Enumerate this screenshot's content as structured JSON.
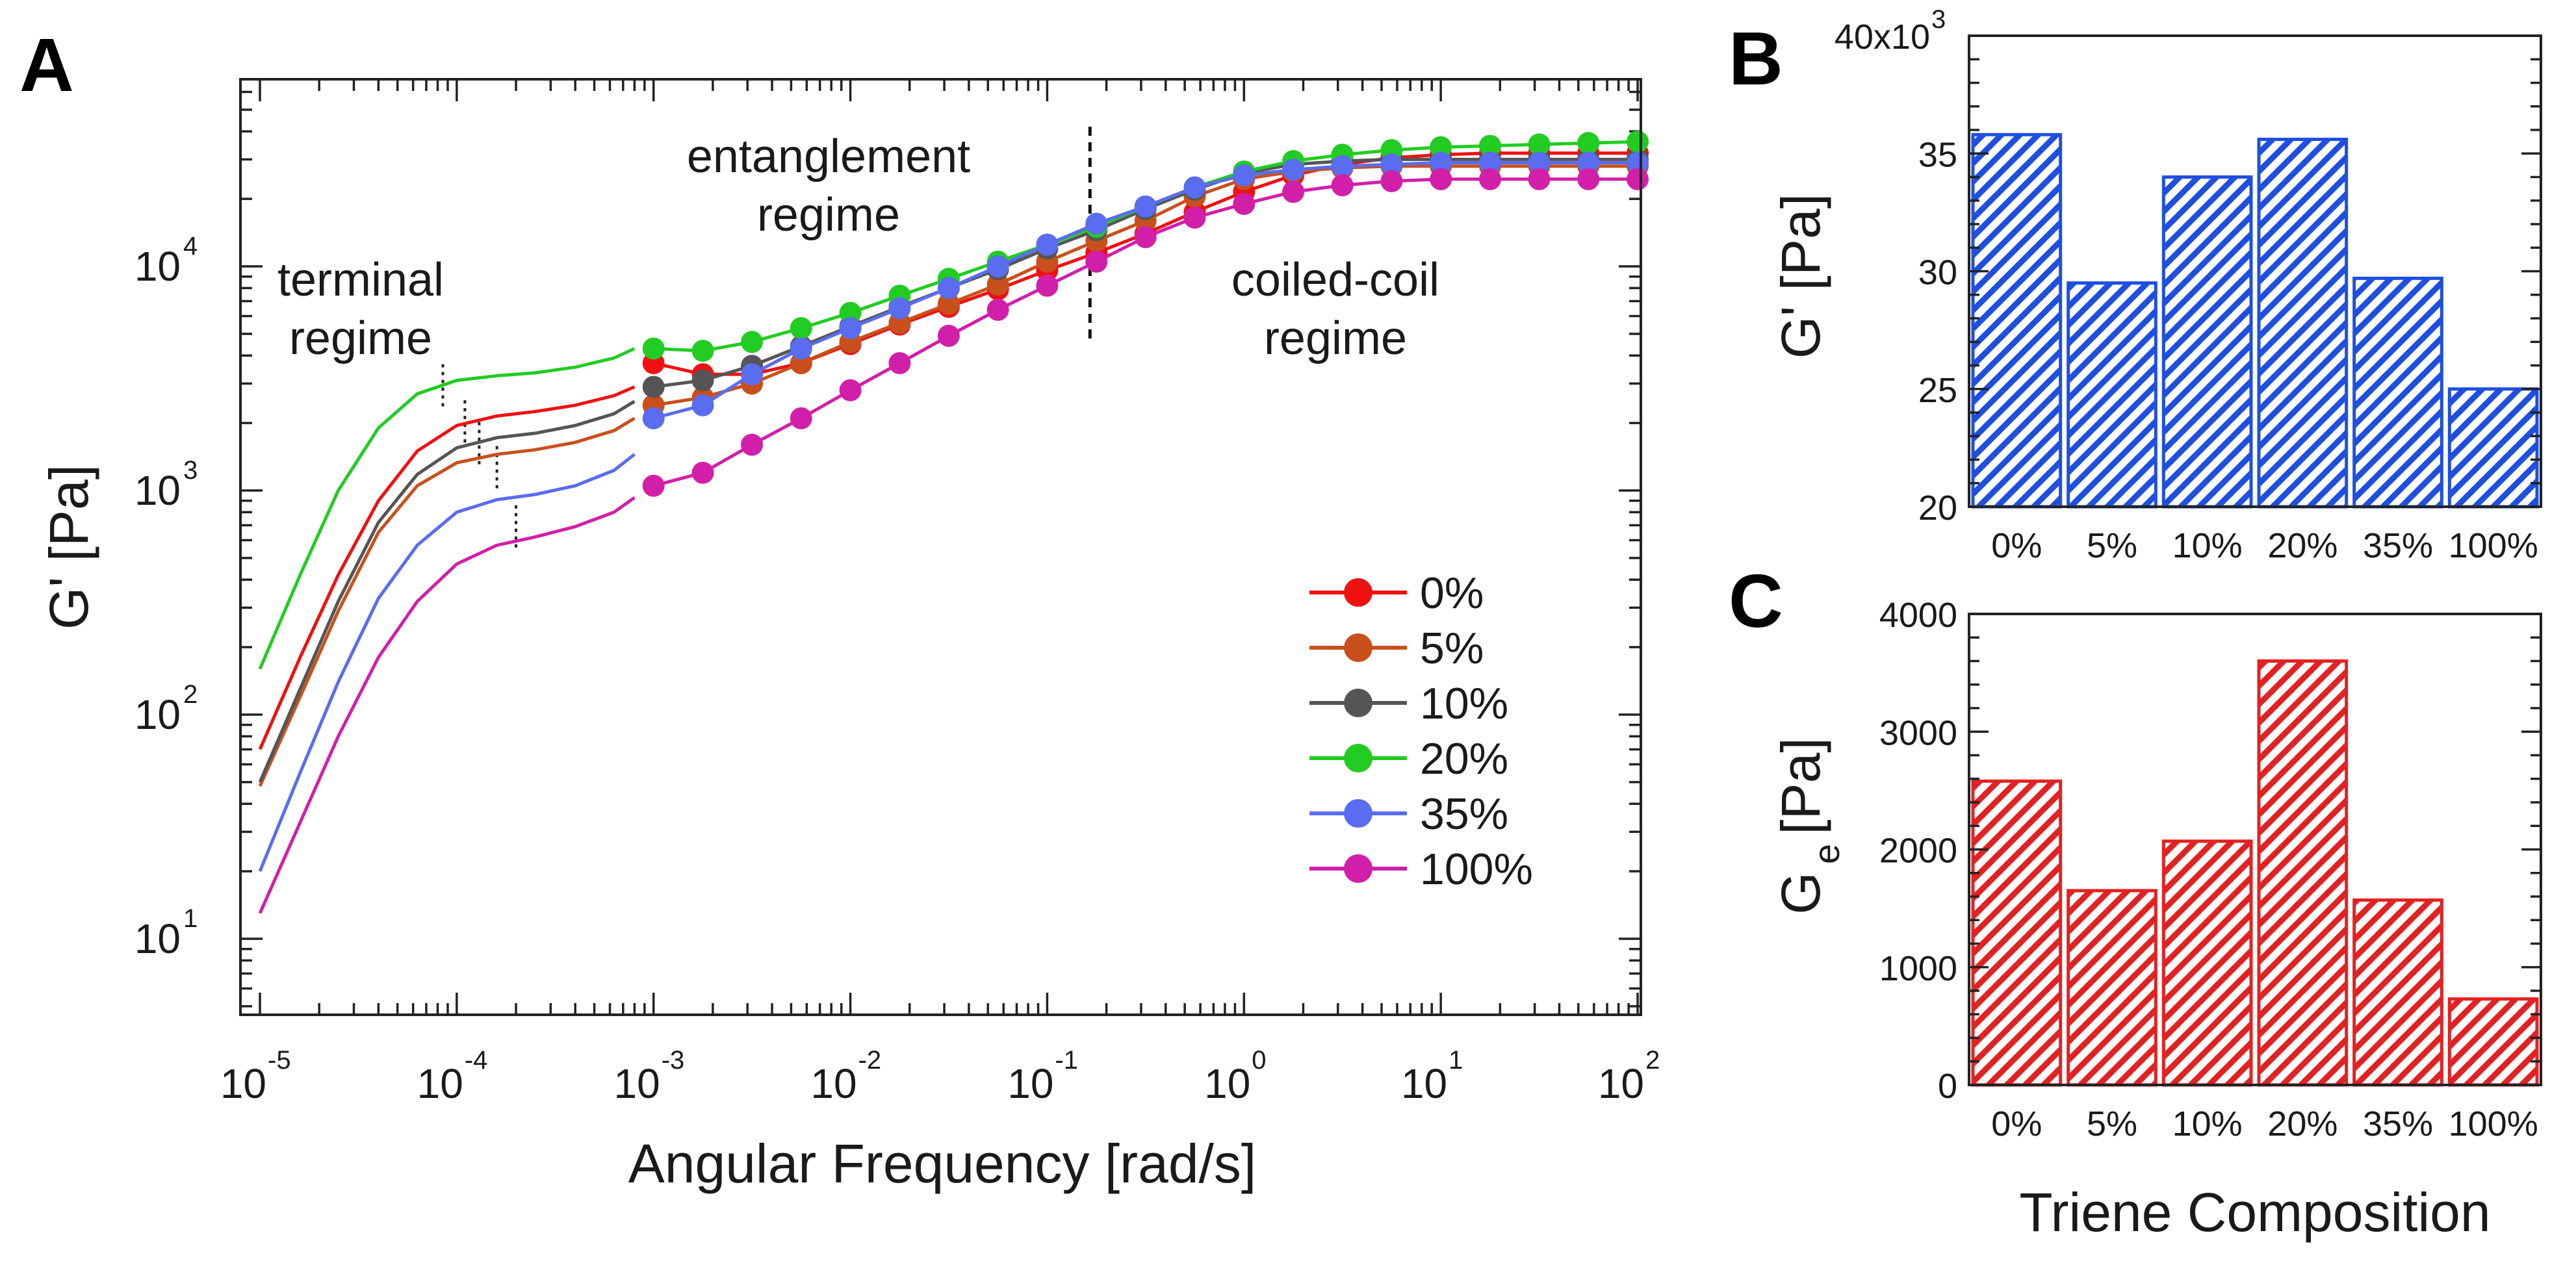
{
  "panels": {
    "a": "A",
    "b": "B",
    "c": "C"
  },
  "colors": {
    "0%": "#ee1111",
    "5%": "#c9501c",
    "10%": "#555555",
    "20%": "#22cc22",
    "35%": "#5a6cf0",
    "100%": "#d21fa9",
    "bar_b": "#1f4fe0",
    "bar_c": "#e22222"
  },
  "annotations": {
    "terminal_1": "terminal",
    "terminal_2": "regime",
    "entanglement_1": "entanglement",
    "entanglement_2": "regime",
    "coiled_1": "coiled-coil",
    "coiled_2": "regime"
  },
  "legend": [
    "0%",
    "5%",
    "10%",
    "20%",
    "35%",
    "100%"
  ],
  "xtick_labels": [
    "10",
    "10",
    "10",
    "10",
    "10",
    "10",
    "10",
    "10"
  ],
  "xtick_exps": [
    "-5",
    "-4",
    "-3",
    "-2",
    "-1",
    "0",
    "1",
    "2"
  ],
  "ytick_labels": [
    "10",
    "10",
    "10",
    "10"
  ],
  "ytick_exps": [
    "1",
    "2",
    "3",
    "4"
  ],
  "b_yticks": [
    "40x10",
    "35",
    "30",
    "25",
    "20"
  ],
  "b_yexp": "3",
  "c_yticks": [
    "4000",
    "3000",
    "2000",
    "1000",
    "0"
  ],
  "chart_data": [
    {
      "id": "A",
      "type": "line",
      "xlabel": "Angular Frequency [rad/s]",
      "ylabel": "G' [Pa]",
      "xscale": "log",
      "yscale": "log",
      "xlim": [
        1e-05,
        100
      ],
      "ylim": [
        5,
        60000
      ],
      "x_markers": [
        0.001,
        0.00178,
        0.00316,
        0.00562,
        0.01,
        0.0178,
        0.0316,
        0.0562,
        0.1,
        0.178,
        0.316,
        0.562,
        1,
        1.78,
        3.16,
        5.62,
        10,
        17.8,
        31.6,
        56.2,
        100
      ],
      "x_curve": [
        1e-05,
        1.6e-05,
        2.5e-05,
        4e-05,
        6.3e-05,
        0.0001,
        0.00016,
        0.00025,
        0.0004,
        0.00063,
        0.0008
      ],
      "legend_placement": "bottom-right",
      "vertical_dashed_line_x": 0.165,
      "series": [
        {
          "name": "0%",
          "curve": [
            70,
            180,
            420,
            900,
            1500,
            1950,
            2150,
            2250,
            2400,
            2650,
            2900
          ],
          "markers": [
            3700,
            3300,
            3300,
            3700,
            4500,
            5500,
            6600,
            7900,
            9600,
            11500,
            14000,
            17500,
            21500,
            25500,
            28500,
            30500,
            31500,
            32000,
            32000,
            32000,
            32000
          ]
        },
        {
          "name": "5%",
          "curve": [
            48,
            120,
            290,
            650,
            1050,
            1330,
            1450,
            1520,
            1640,
            1850,
            2100
          ],
          "markers": [
            2400,
            2600,
            3000,
            3700,
            4600,
            5600,
            6800,
            8300,
            10500,
            13000,
            16000,
            20500,
            24500,
            26500,
            27500,
            28000,
            28000,
            28000,
            28000,
            28000,
            28000
          ]
        },
        {
          "name": "10%",
          "curve": [
            50,
            130,
            320,
            720,
            1180,
            1550,
            1720,
            1800,
            1950,
            2200,
            2500
          ],
          "markers": [
            2900,
            3100,
            3600,
            4400,
            5400,
            6600,
            8000,
            9700,
            12000,
            14500,
            18000,
            22000,
            26000,
            28500,
            29500,
            30000,
            30000,
            30000,
            30000,
            30000,
            30000
          ]
        },
        {
          "name": "20%",
          "curve": [
            160,
            420,
            1000,
            1900,
            2700,
            3100,
            3250,
            3350,
            3550,
            3900,
            4300
          ],
          "markers": [
            4300,
            4200,
            4600,
            5300,
            6200,
            7400,
            8800,
            10500,
            12500,
            15000,
            18500,
            22500,
            26500,
            29500,
            31500,
            33000,
            34000,
            34500,
            35000,
            35500,
            36000
          ]
        },
        {
          "name": "35%",
          "curve": [
            20,
            55,
            140,
            330,
            570,
            800,
            910,
            960,
            1050,
            1230,
            1450
          ],
          "markers": [
            2100,
            2400,
            3300,
            4300,
            5300,
            6500,
            8000,
            10000,
            12500,
            15500,
            18500,
            22500,
            25500,
            27000,
            28000,
            28500,
            29000,
            29000,
            29000,
            29000,
            29000
          ]
        },
        {
          "name": "100%",
          "curve": [
            13,
            33,
            80,
            180,
            320,
            470,
            570,
            620,
            690,
            800,
            930
          ],
          "markers": [
            1050,
            1200,
            1600,
            2100,
            2800,
            3700,
            4900,
            6400,
            8200,
            10500,
            13500,
            16500,
            19000,
            21500,
            23000,
            24000,
            24500,
            24500,
            24500,
            24500,
            24500
          ]
        }
      ]
    },
    {
      "id": "B",
      "type": "bar",
      "ylabel": "G' [Pa]",
      "categories": [
        "0%",
        "5%",
        "10%",
        "20%",
        "35%",
        "100%"
      ],
      "values": [
        35800,
        29500,
        34000,
        35600,
        29700,
        25000
      ],
      "ylim": [
        20000,
        40000
      ],
      "hatch": true
    },
    {
      "id": "C",
      "type": "bar",
      "ylabel": "G",
      "ylabel_sub": "e",
      "ylabel_unit": "[Pa]",
      "xlabel": "Triene Composition",
      "categories": [
        "0%",
        "5%",
        "10%",
        "20%",
        "35%",
        "100%"
      ],
      "values": [
        2580,
        1650,
        2070,
        3600,
        1570,
        730
      ],
      "ylim": [
        0,
        4000
      ],
      "hatch": true
    }
  ]
}
